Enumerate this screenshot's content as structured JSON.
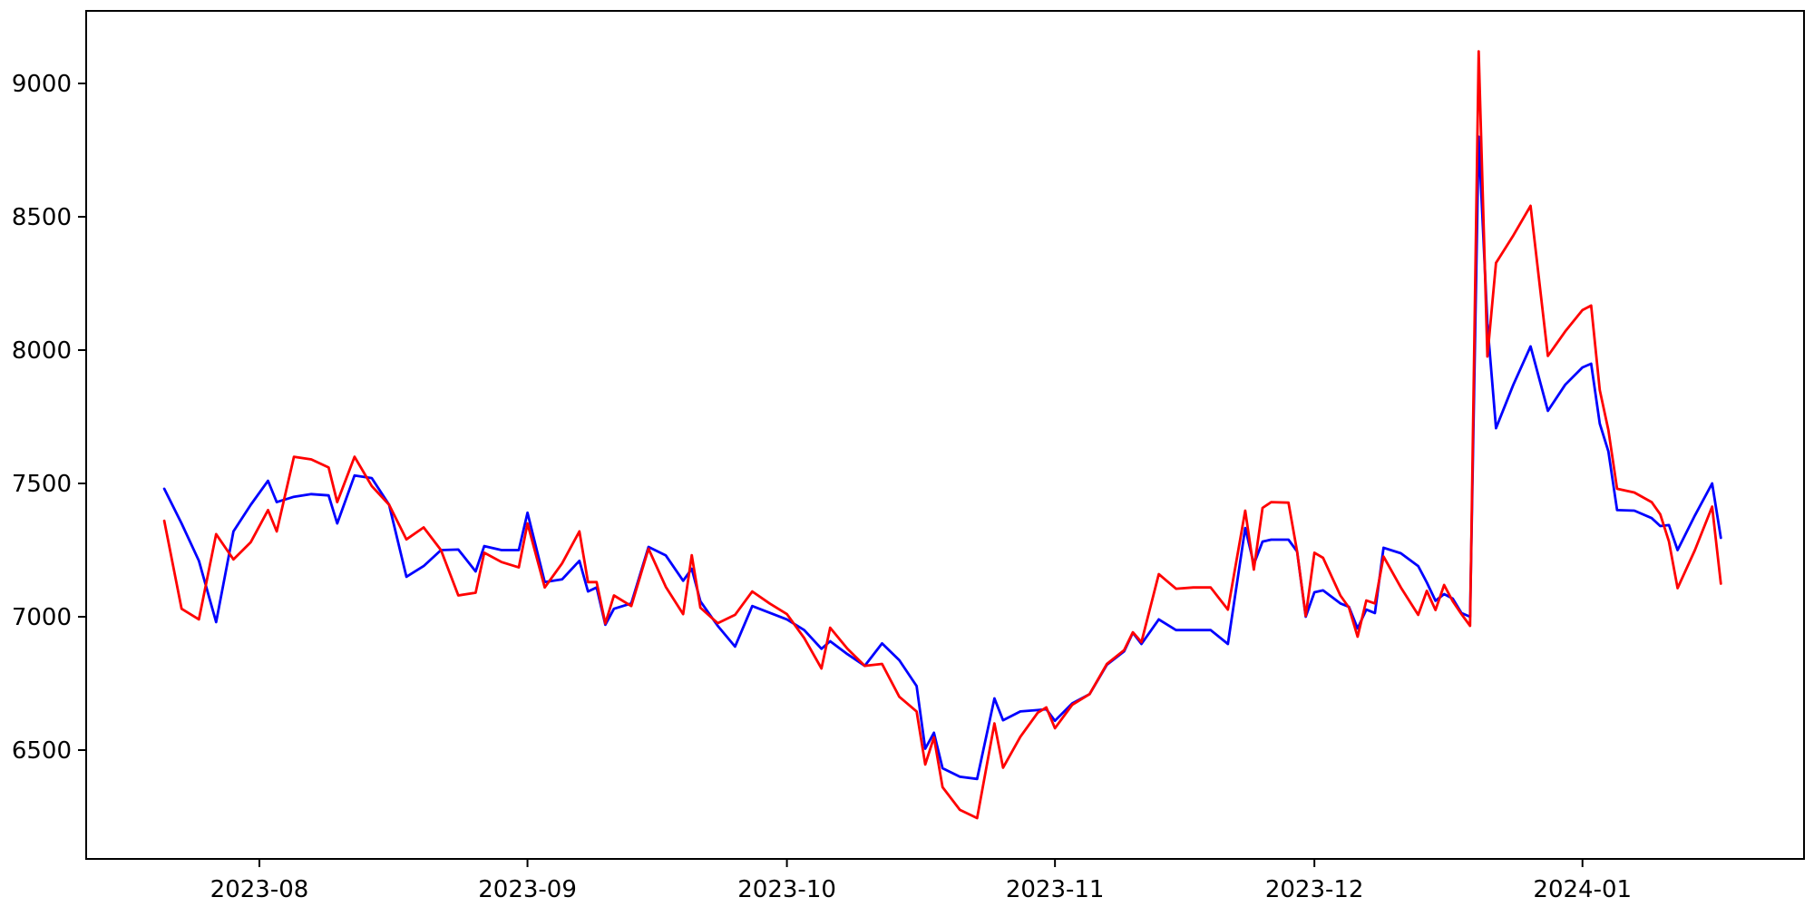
{
  "chart_data": {
    "type": "line",
    "title": "",
    "xlabel": "",
    "ylabel": "",
    "grid": false,
    "legend": null,
    "background": "#ffffff",
    "axis_color": "#000000",
    "x_axis": {
      "tick_labels": [
        "2023-08",
        "2023-09",
        "2023-10",
        "2023-11",
        "2023-12",
        "2024-01"
      ],
      "tick_dates": [
        "2023-08-01",
        "2023-09-01",
        "2023-10-01",
        "2023-11-01",
        "2023-12-01",
        "2024-01-01"
      ],
      "range_dates": [
        "2023-07-12",
        "2024-01-27"
      ]
    },
    "y_axis": {
      "tick_labels": [
        "6500",
        "7000",
        "7500",
        "8000",
        "8500",
        "9000"
      ],
      "ticks": [
        6500,
        7000,
        7500,
        8000,
        8500,
        9000
      ],
      "range": [
        6092,
        9272
      ]
    },
    "x": [
      "2023-07-21",
      "2023-07-23",
      "2023-07-25",
      "2023-07-27",
      "2023-07-29",
      "2023-07-31",
      "2023-08-02",
      "2023-08-03",
      "2023-08-05",
      "2023-08-07",
      "2023-08-09",
      "2023-08-10",
      "2023-08-12",
      "2023-08-14",
      "2023-08-16",
      "2023-08-18",
      "2023-08-20",
      "2023-08-22",
      "2023-08-24",
      "2023-08-26",
      "2023-08-27",
      "2023-08-29",
      "2023-08-31",
      "2023-09-01",
      "2023-09-03",
      "2023-09-05",
      "2023-09-07",
      "2023-09-08",
      "2023-09-09",
      "2023-09-10",
      "2023-09-11",
      "2023-09-13",
      "2023-09-15",
      "2023-09-17",
      "2023-09-19",
      "2023-09-20",
      "2023-09-21",
      "2023-09-23",
      "2023-09-25",
      "2023-09-27",
      "2023-09-29",
      "2023-10-01",
      "2023-10-03",
      "2023-10-05",
      "2023-10-06",
      "2023-10-08",
      "2023-10-10",
      "2023-10-12",
      "2023-10-14",
      "2023-10-16",
      "2023-10-17",
      "2023-10-18",
      "2023-10-19",
      "2023-10-21",
      "2023-10-23",
      "2023-10-25",
      "2023-10-26",
      "2023-10-28",
      "2023-10-30",
      "2023-10-31",
      "2023-11-01",
      "2023-11-03",
      "2023-11-05",
      "2023-11-07",
      "2023-11-09",
      "2023-11-10",
      "2023-11-11",
      "2023-11-13",
      "2023-11-15",
      "2023-11-17",
      "2023-11-19",
      "2023-11-21",
      "2023-11-23",
      "2023-11-24",
      "2023-11-25",
      "2023-11-26",
      "2023-11-28",
      "2023-11-29",
      "2023-11-30",
      "2023-12-01",
      "2023-12-02",
      "2023-12-04",
      "2023-12-05",
      "2023-12-06",
      "2023-12-07",
      "2023-12-08",
      "2023-12-09",
      "2023-12-11",
      "2023-12-13",
      "2023-12-14",
      "2023-12-15",
      "2023-12-16",
      "2023-12-17",
      "2023-12-18",
      "2023-12-19",
      "2023-12-20",
      "2023-12-21",
      "2023-12-22",
      "2023-12-24",
      "2023-12-26",
      "2023-12-28",
      "2023-12-30",
      "2024-01-01",
      "2024-01-02",
      "2024-01-03",
      "2024-01-04",
      "2024-01-05",
      "2024-01-07",
      "2024-01-09",
      "2024-01-10",
      "2024-01-11",
      "2024-01-12",
      "2024-01-14",
      "2024-01-16",
      "2024-01-17"
    ],
    "series": [
      {
        "name": "series-blue",
        "color": "#0000ff",
        "values": [
          7480,
          7350,
          7210,
          6980,
          7320,
          7420,
          7510,
          7430,
          7450,
          7460,
          7455,
          7350,
          7530,
          7520,
          7420,
          7150,
          7190,
          7250,
          7252,
          7170,
          7265,
          7250,
          7250,
          7390,
          7130,
          7140,
          7210,
          7095,
          7110,
          6970,
          7030,
          7050,
          7262,
          7230,
          7135,
          7180,
          7058,
          6966,
          6888,
          7040,
          7015,
          6990,
          6950,
          6880,
          6908,
          6860,
          6816,
          6900,
          6837,
          6740,
          6505,
          6565,
          6432,
          6400,
          6392,
          6694,
          6612,
          6645,
          6650,
          6653,
          6610,
          6675,
          6710,
          6820,
          6870,
          6940,
          6898,
          6990,
          6950,
          6950,
          6950,
          6898,
          7333,
          7197,
          7282,
          7289,
          7289,
          7245,
          7000,
          7092,
          7099,
          7050,
          7037,
          6956,
          7027,
          7014,
          7259,
          7238,
          7190,
          7129,
          7060,
          7085,
          7068,
          7014,
          7000,
          8800,
          8100,
          7707,
          7870,
          8014,
          7772,
          7870,
          7935,
          7949,
          7724,
          7620,
          7400,
          7398,
          7370,
          7340,
          7344,
          7250,
          7380,
          7500,
          7296
        ]
      },
      {
        "name": "series-red",
        "color": "#ff0000",
        "values": [
          7360,
          7030,
          6990,
          7310,
          7215,
          7280,
          7400,
          7320,
          7600,
          7590,
          7560,
          7430,
          7600,
          7490,
          7420,
          7290,
          7335,
          7250,
          7080,
          7090,
          7240,
          7205,
          7185,
          7350,
          7110,
          7200,
          7320,
          7130,
          7130,
          6975,
          7080,
          7040,
          7255,
          7112,
          7010,
          7231,
          7034,
          6976,
          7007,
          7095,
          7050,
          7010,
          6920,
          6806,
          6959,
          6880,
          6816,
          6823,
          6700,
          6645,
          6446,
          6548,
          6361,
          6276,
          6245,
          6600,
          6434,
          6550,
          6640,
          6660,
          6582,
          6670,
          6710,
          6823,
          6875,
          6942,
          6905,
          7160,
          7105,
          7110,
          7110,
          7027,
          7398,
          7177,
          7408,
          7430,
          7428,
          7245,
          7003,
          7240,
          7221,
          7080,
          7034,
          6925,
          7061,
          7050,
          7226,
          7110,
          7007,
          7097,
          7025,
          7119,
          7058,
          7010,
          6966,
          9120,
          7976,
          8327,
          8430,
          8541,
          7978,
          8070,
          8150,
          8167,
          7850,
          7700,
          7480,
          7466,
          7430,
          7384,
          7282,
          7107,
          7250,
          7413,
          7124
        ]
      }
    ]
  }
}
